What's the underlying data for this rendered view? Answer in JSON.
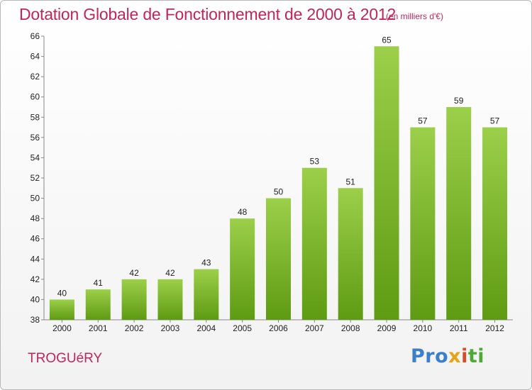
{
  "chart_data": {
    "type": "bar",
    "title": "Dotation Globale de Fonctionnement de 2000 à 2012",
    "subtitle": "(en milliers d'€)",
    "categories": [
      "2000",
      "2001",
      "2002",
      "2003",
      "2004",
      "2005",
      "2006",
      "2007",
      "2008",
      "2009",
      "2010",
      "2011",
      "2012"
    ],
    "values": [
      40,
      41,
      42,
      42,
      43,
      48,
      50,
      53,
      51,
      65,
      57,
      59,
      57
    ],
    "ylim": [
      38,
      66
    ],
    "yticks": [
      38,
      40,
      42,
      44,
      46,
      48,
      50,
      52,
      54,
      56,
      58,
      60,
      62,
      64,
      66
    ],
    "grid": false,
    "bar_color_top": "#9ccf4a",
    "bar_color_bottom": "#5e9b12",
    "title_color": "#c0265a"
  },
  "commune": "TROGUéRY",
  "logo": {
    "p1": "Pro",
    "p2": "x",
    "p3": "i",
    "p4": "ti"
  }
}
